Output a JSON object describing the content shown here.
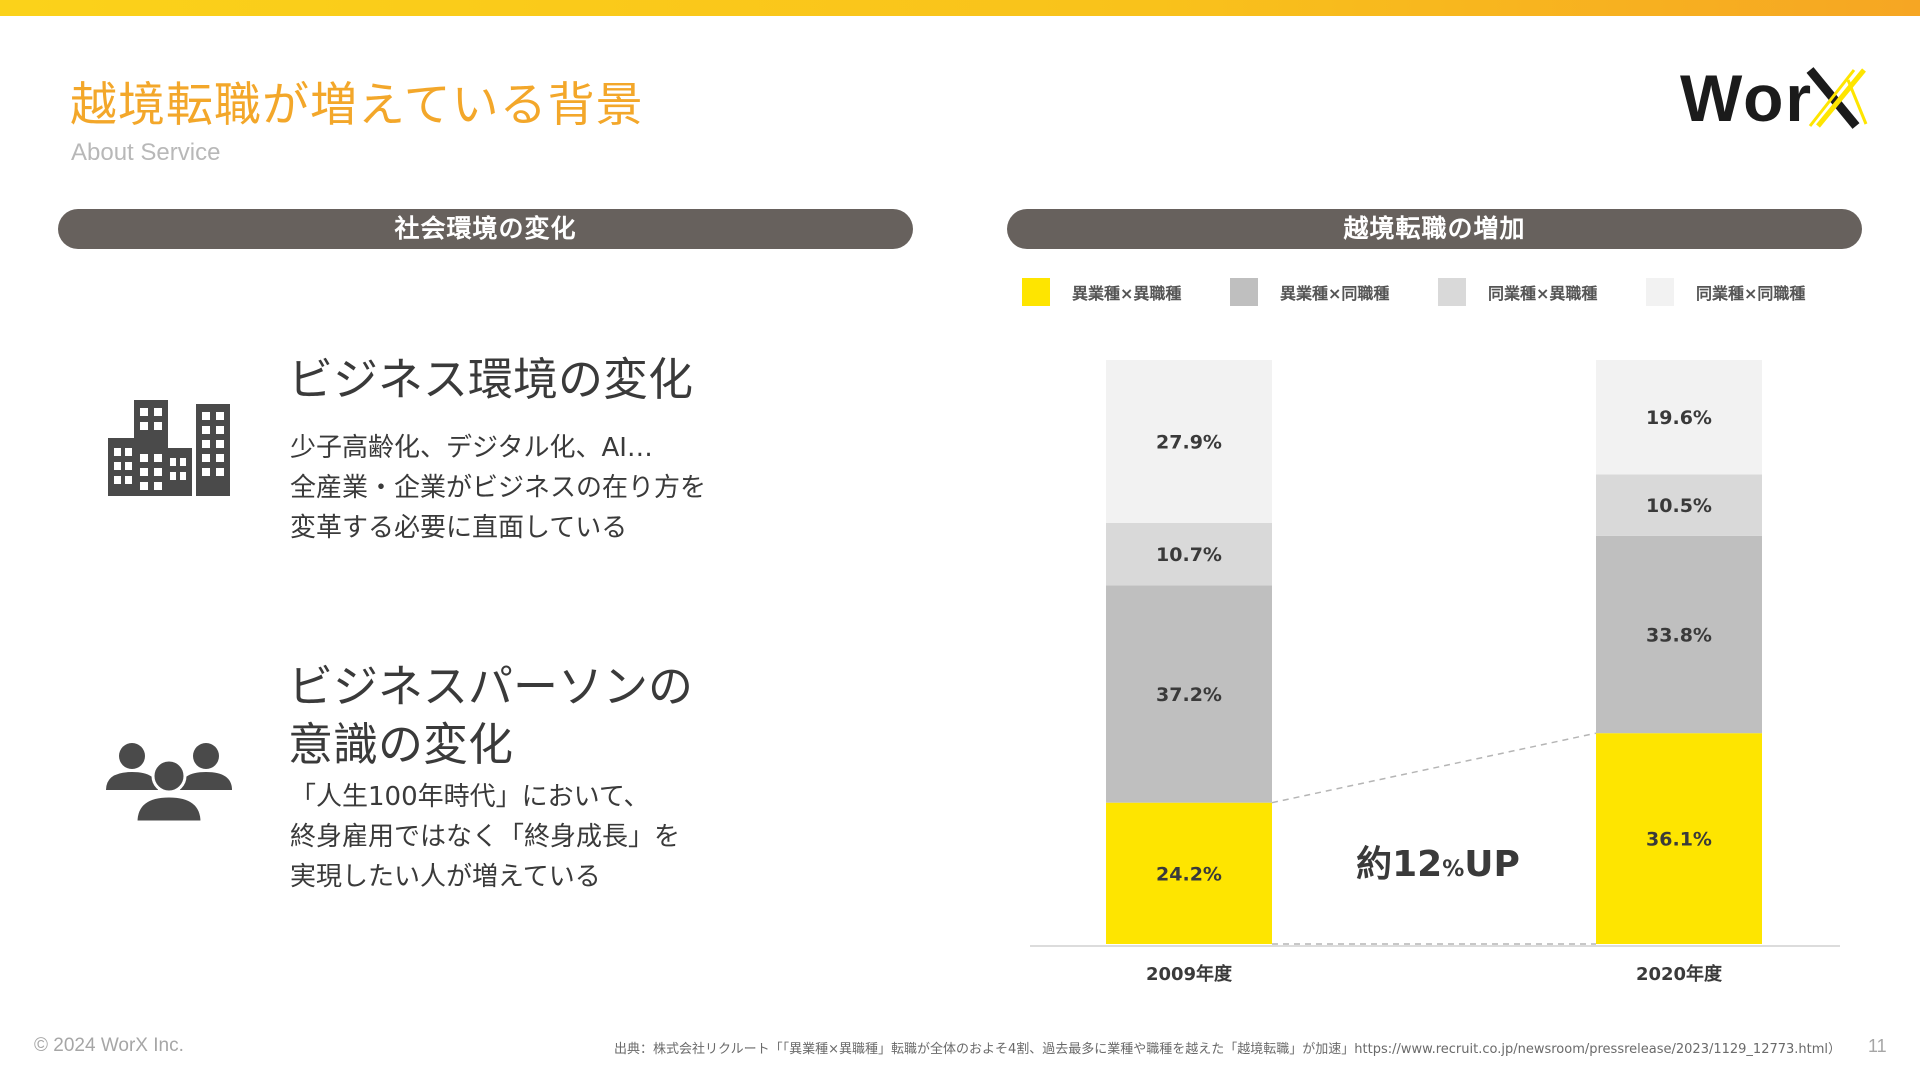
{
  "header": {
    "title": "越境転職が増えている背景",
    "subtitle": "About Service",
    "logo_text": "Wor"
  },
  "left_panel": {
    "pill_label": "社会環境の変化",
    "sections": [
      {
        "icon": "buildings-icon",
        "heading": "ビジネス環境の変化",
        "body": [
          "少子高齢化、デジタル化、AI…",
          "全産業・企業がビジネスの在り方を",
          "変革する必要に直面している"
        ]
      },
      {
        "icon": "people-icon",
        "heading_lines": [
          "ビジネスパーソンの",
          "意識の変化"
        ],
        "body": [
          "「人生100年時代」において、",
          "終身雇用ではなく「終身成長」を",
          "実現したい人が増えている"
        ]
      }
    ]
  },
  "right_panel": {
    "pill_label": "越境転職の増加"
  },
  "chart_data": {
    "type": "bar",
    "stacked": true,
    "normalized_percent": true,
    "categories": [
      "2009年度",
      "2020年度"
    ],
    "series": [
      {
        "name": "異業種×異職種",
        "color": "#fee500",
        "values": [
          24.2,
          36.1
        ],
        "labels": [
          "24.2%",
          "36.1%"
        ]
      },
      {
        "name": "異業種×同職種",
        "color": "#bfbfbf",
        "values": [
          37.2,
          33.8
        ],
        "labels": [
          "37.2%",
          "33.8%"
        ]
      },
      {
        "name": "同業種×異職種",
        "color": "#d9d9d9",
        "values": [
          10.7,
          10.5
        ],
        "labels": [
          "10.7%",
          "10.5%"
        ]
      },
      {
        "name": "同業種×同職種",
        "color": "#f2f2f2",
        "values": [
          27.9,
          19.6
        ],
        "labels": [
          "27.9%",
          "19.6%"
        ]
      }
    ],
    "annotation": {
      "prefix": "約",
      "number": "12",
      "unit": "%",
      "suffix": "UP"
    },
    "legend_position": "top",
    "grid": false
  },
  "footer": {
    "copyright": "© 2024 WorX Inc.",
    "source": "出典：株式会社リクルート「「異業種×異職種」転職が全体のおよそ4割、過去最多に業種や職種を越えた「越境転職」が加速」https://www.recruit.co.jp/newsroom/pressrelease/2023/1129_12773.html）",
    "page_number": "11"
  },
  "colors": {
    "accent_orange": "#f3a72a",
    "accent_yellow": "#fee500",
    "pill_gray": "#67615d",
    "text_dark": "#3a3a3a"
  }
}
